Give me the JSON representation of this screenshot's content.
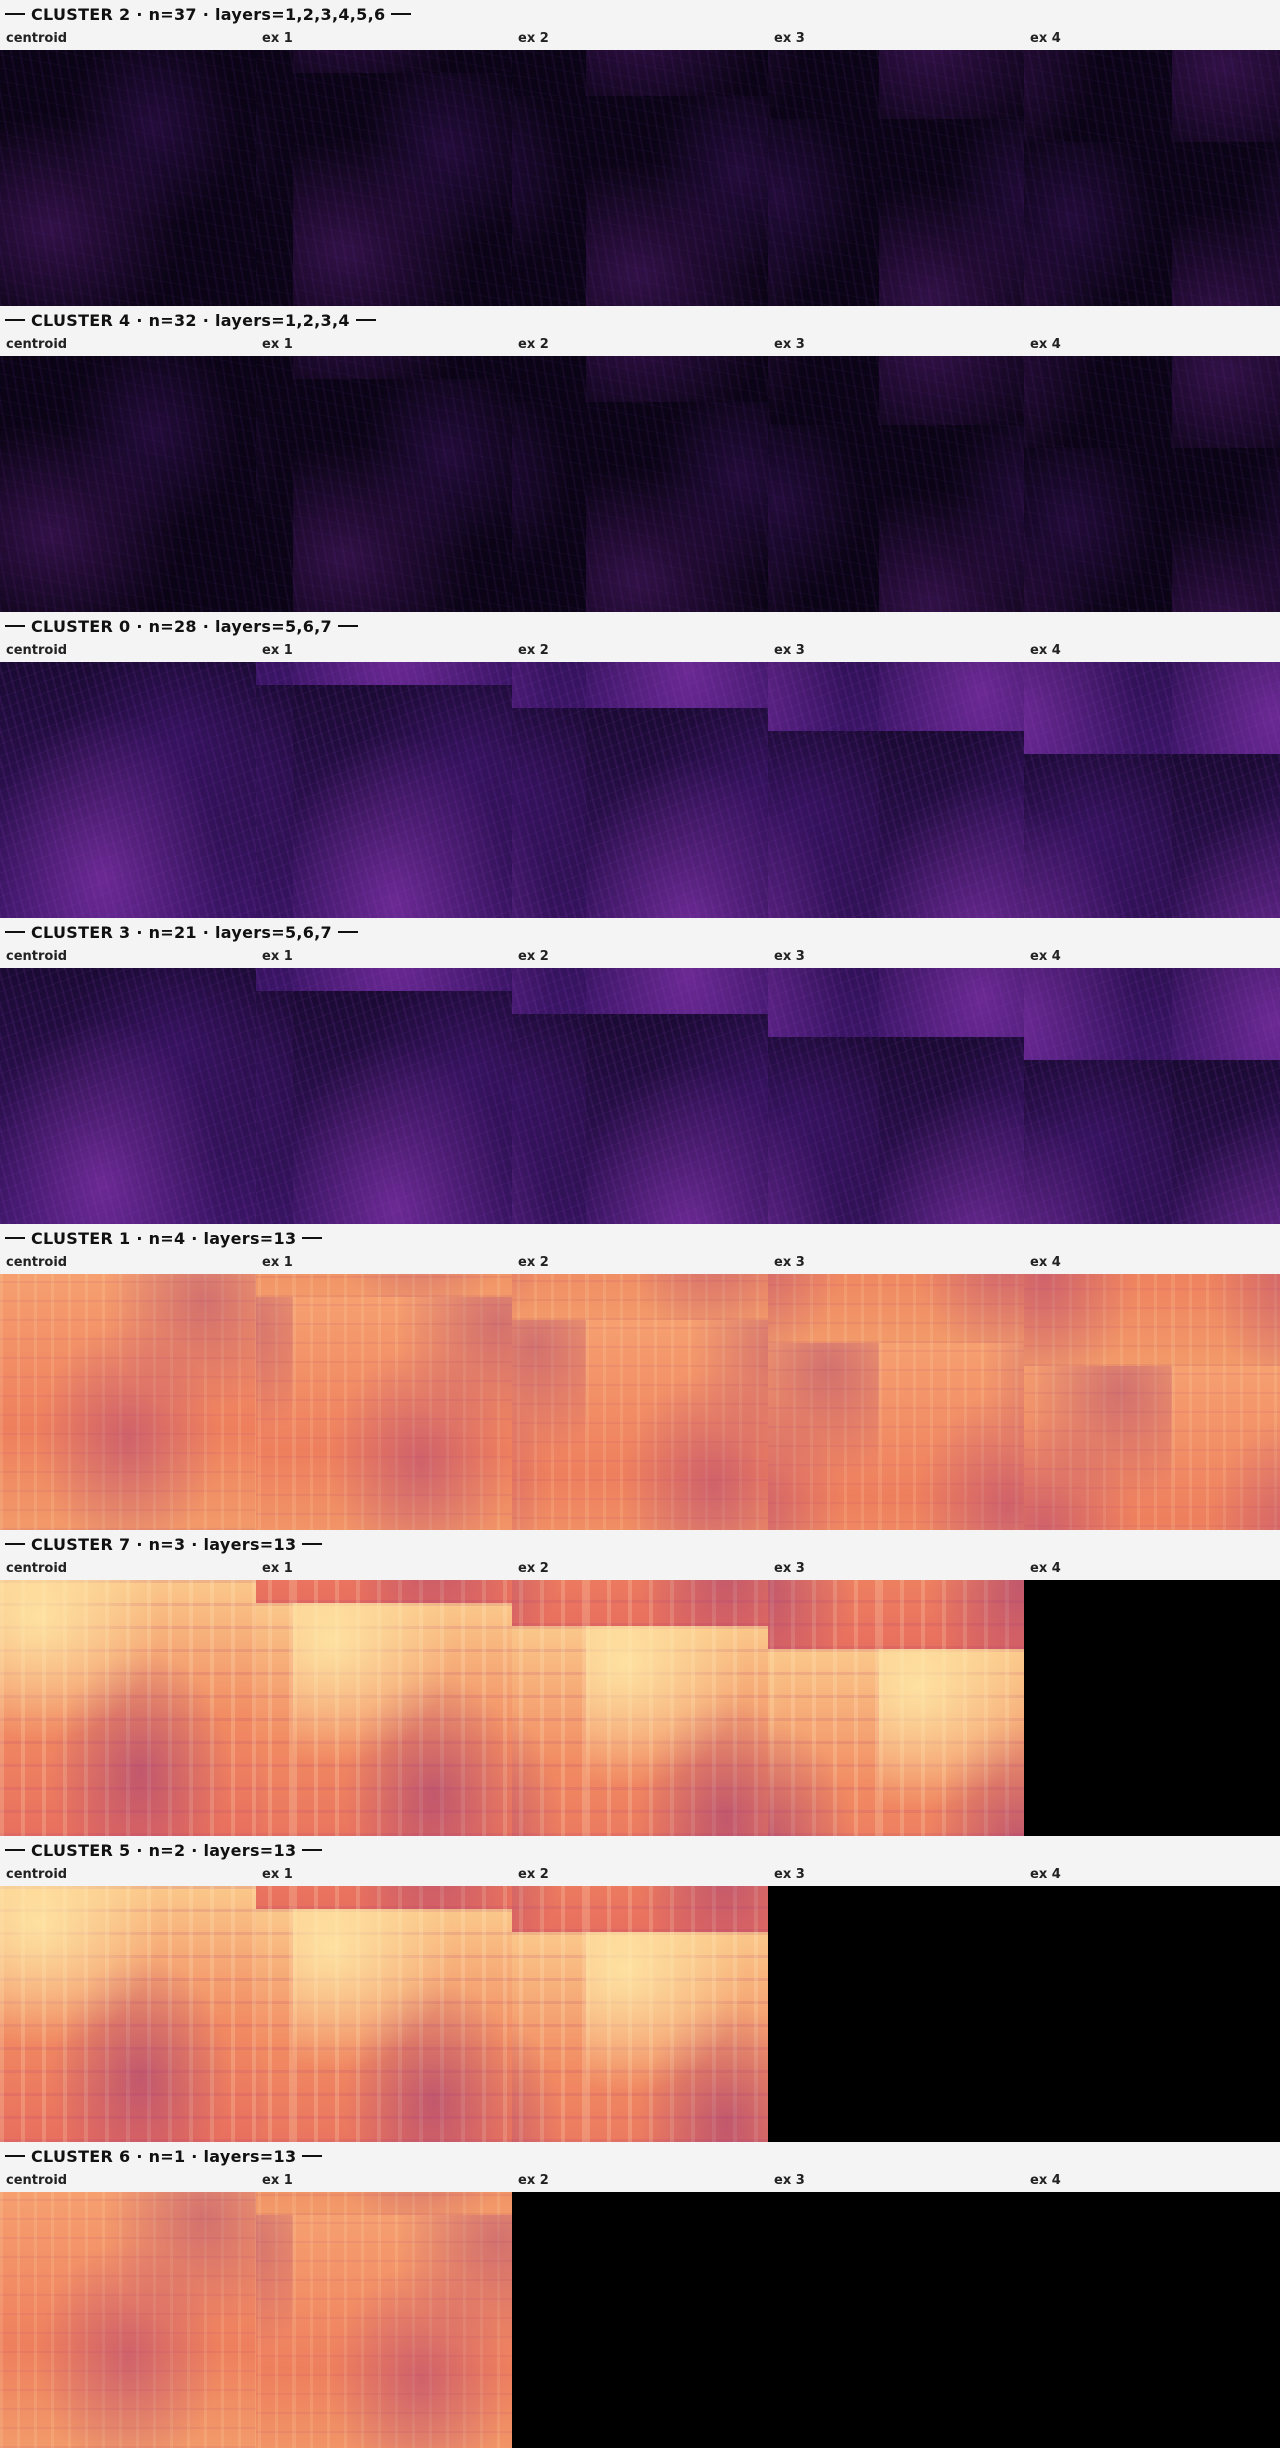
{
  "columns": [
    "centroid",
    "ex 1",
    "ex 2",
    "ex 3",
    "ex 4"
  ],
  "clusters": [
    {
      "title": "CLUSTER 2  ·  n=37  ·  layers=1,2,3,4,5,6"
    },
    {
      "title": "CLUSTER 4  ·  n=32  ·  layers=1,2,3,4"
    },
    {
      "title": "CLUSTER 0  ·  n=28  ·  layers=5,6,7"
    },
    {
      "title": "CLUSTER 3  ·  n=21  ·  layers=5,6,7"
    },
    {
      "title": "CLUSTER 1  ·  n=4  ·  layers=13"
    },
    {
      "title": "CLUSTER 7  ·  n=3  ·  layers=13"
    },
    {
      "title": "CLUSTER 5  ·  n=2  ·  layers=13"
    },
    {
      "title": "CLUSTER 6  ·  n=1  ·  layers=13"
    }
  ]
}
